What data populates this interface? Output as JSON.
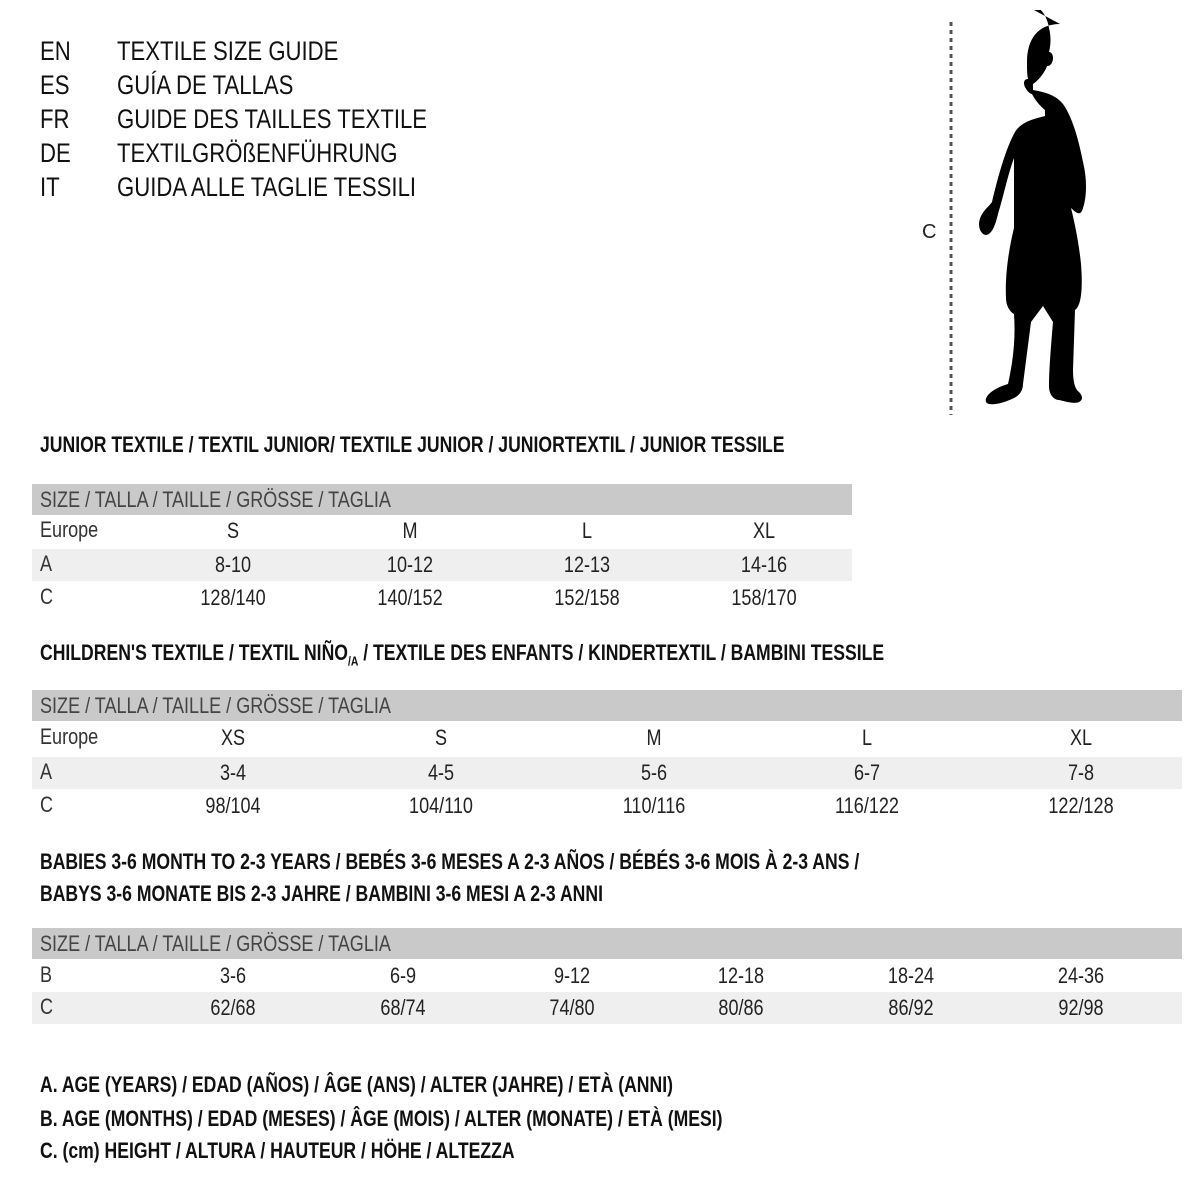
{
  "guide_titles": [
    {
      "lang": "EN",
      "text": "TEXTILE SIZE GUIDE"
    },
    {
      "lang": "ES",
      "text": "GUÍA DE TALLAS"
    },
    {
      "lang": "FR",
      "text": "GUIDE DES TAILLES TEXTILE"
    },
    {
      "lang": "DE",
      "text": "TEXTILGRÖßENFÜHRUNG"
    },
    {
      "lang": "IT",
      "text": "GUIDA ALLE TAGLIE TESSILI"
    }
  ],
  "figure": {
    "measure_label": "C",
    "icon": "child-silhouette-icon"
  },
  "sections": [
    {
      "title": "JUNIOR TEXTILE / TEXTIL JUNIOR/ TEXTILE JUNIOR / JUNIORTEXTIL / JUNIOR TESSILE",
      "header": "SIZE / TALLA / TAILLE / GRÖSSE / TAGLIA",
      "rows": [
        {
          "label": "Europe",
          "values": [
            "S",
            "M",
            "L",
            "XL"
          ]
        },
        {
          "label": "A",
          "values": [
            "8-10",
            "10-12",
            "12-13",
            "14-16"
          ]
        },
        {
          "label": "C",
          "values": [
            "128/140",
            "140/152",
            "152/158",
            "158/170"
          ]
        }
      ]
    },
    {
      "title_parts": [
        "CHILDREN'S TEXTILE / TEXTIL NIÑO",
        "/A",
        " / TEXTILE DES ENFANTS / KINDERTEXTIL / BAMBINI TESSILE"
      ],
      "header": "SIZE / TALLA / TAILLE / GRÖSSE / TAGLIA",
      "rows": [
        {
          "label": "Europe",
          "values": [
            "XS",
            "S",
            "M",
            "L",
            "XL"
          ]
        },
        {
          "label": "A",
          "values": [
            "3-4",
            "4-5",
            "5-6",
            "6-7",
            "7-8"
          ]
        },
        {
          "label": "C",
          "values": [
            "98/104",
            "104/110",
            "110/116",
            "116/122",
            "122/128"
          ]
        }
      ]
    },
    {
      "title_lines": [
        "BABIES 3-6 MONTH TO 2-3 YEARS / BEBÉS 3-6 MESES A 2-3 AÑOS / BÉBÉS 3-6 MOIS À 2-3 ANS /",
        "BABYS 3-6 MONATE BIS 2-3 JAHRE / BAMBINI 3-6 MESI A 2-3 ANNI"
      ],
      "header": "SIZE / TALLA / TAILLE / GRÖSSE / TAGLIA",
      "rows": [
        {
          "label": "B",
          "values": [
            "3-6",
            "6-9",
            "9-12",
            "12-18",
            "18-24",
            "24-36"
          ]
        },
        {
          "label": "C",
          "values": [
            "62/68",
            "68/74",
            "74/80",
            "80/86",
            "86/92",
            "92/98"
          ]
        }
      ]
    }
  ],
  "legend": [
    "A. AGE (YEARS) / EDAD (AÑOS) / ÂGE (ANS) / ALTER (JAHRE) / ETÀ (ANNI)",
    "B. AGE (MONTHS) / EDAD (MESES) / ÂGE (MOIS) / ALTER (MONATE) / ETÀ (MESI)",
    "C. (cm) HEIGHT / ALTURA / HAUTEUR / HÖHE / ALTEZZA"
  ],
  "colors": {
    "header_bar": "#c9c9c9",
    "shaded_row": "#efefef",
    "text": "#111111"
  }
}
